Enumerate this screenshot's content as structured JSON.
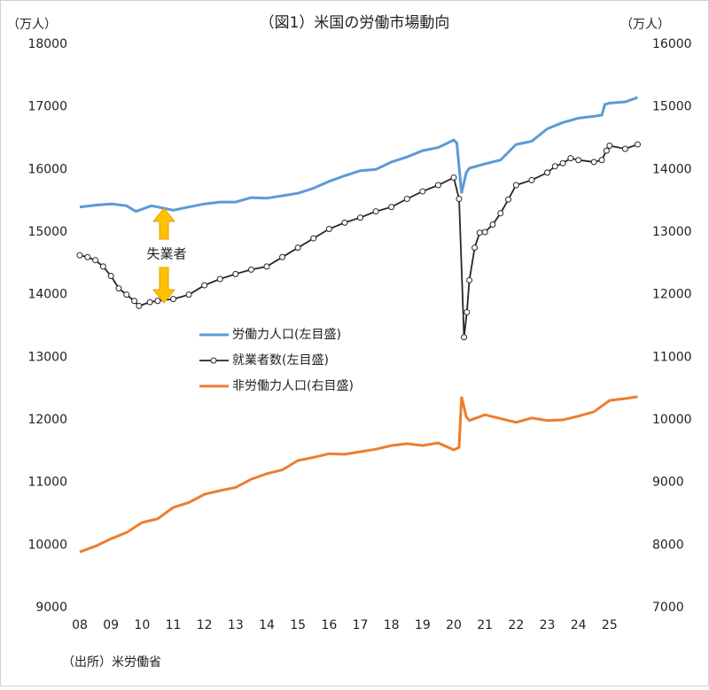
{
  "chart_data": {
    "type": "line",
    "title": "（図1）米国の労働市場動向",
    "y_unit": "（万人）",
    "y2_unit": "（万人）",
    "source": "（出所）米労働省",
    "annotation": "失業者",
    "xlim": [
      2008,
      2026
    ],
    "xticks": [
      {
        "value": 2008,
        "label": "08"
      },
      {
        "value": 2009,
        "label": "09"
      },
      {
        "value": 2010,
        "label": "10"
      },
      {
        "value": 2011,
        "label": "11"
      },
      {
        "value": 2012,
        "label": "12"
      },
      {
        "value": 2013,
        "label": "13"
      },
      {
        "value": 2014,
        "label": "14"
      },
      {
        "value": 2015,
        "label": "15"
      },
      {
        "value": 2016,
        "label": "16"
      },
      {
        "value": 2017,
        "label": "17"
      },
      {
        "value": 2018,
        "label": "18"
      },
      {
        "value": 2019,
        "label": "19"
      },
      {
        "value": 2020,
        "label": "20"
      },
      {
        "value": 2021,
        "label": "21"
      },
      {
        "value": 2022,
        "label": "22"
      },
      {
        "value": 2023,
        "label": "23"
      },
      {
        "value": 2024,
        "label": "24"
      },
      {
        "value": 2025,
        "label": "25"
      }
    ],
    "ylim": [
      9000,
      18000
    ],
    "yticks": [
      9000,
      10000,
      11000,
      12000,
      13000,
      14000,
      15000,
      16000,
      17000,
      18000
    ],
    "y2lim": [
      7000,
      16000
    ],
    "y2ticks": [
      7000,
      8000,
      9000,
      10000,
      11000,
      12000,
      13000,
      14000,
      15000,
      16000
    ],
    "series": [
      {
        "name": "労働力人口(左目盛)",
        "color": "#5b9bd5",
        "marker": false,
        "x": [
          2008,
          2008.5,
          2009,
          2009.5,
          2009.8,
          2010.3,
          2010.7,
          2011,
          2011.5,
          2012,
          2012.5,
          2013,
          2013.5,
          2014,
          2014.5,
          2015,
          2015.5,
          2016,
          2016.5,
          2017,
          2017.5,
          2018,
          2018.5,
          2019,
          2019.5,
          2020,
          2020.1,
          2020.25,
          2020.4,
          2020.5,
          2021,
          2021.5,
          2022,
          2022.5,
          2023,
          2023.5,
          2024,
          2024.5,
          2024.75,
          2024.85,
          2025,
          2025.5,
          2025.9
        ],
        "values": [
          15400,
          15430,
          15450,
          15420,
          15330,
          15420,
          15380,
          15350,
          15400,
          15450,
          15480,
          15480,
          15550,
          15540,
          15580,
          15620,
          15700,
          15810,
          15900,
          15980,
          16000,
          16120,
          16200,
          16300,
          16350,
          16470,
          16420,
          15620,
          15950,
          16020,
          16090,
          16150,
          16400,
          16450,
          16650,
          16750,
          16820,
          16850,
          16870,
          17040,
          17060,
          17080,
          17150
        ]
      },
      {
        "name": "就業者数(左目盛)",
        "color": "#262626",
        "marker": true,
        "x": [
          2008,
          2008.25,
          2008.5,
          2008.75,
          2009,
          2009.25,
          2009.5,
          2009.75,
          2009.9,
          2010.25,
          2010.5,
          2011,
          2011.5,
          2012,
          2012.5,
          2013,
          2013.5,
          2014,
          2014.5,
          2015,
          2015.5,
          2016,
          2016.5,
          2017,
          2017.5,
          2018,
          2018.5,
          2019,
          2019.5,
          2020,
          2020.17,
          2020.33,
          2020.42,
          2020.5,
          2020.67,
          2020.83,
          2021,
          2021.25,
          2021.5,
          2021.75,
          2022,
          2022.5,
          2023,
          2023.25,
          2023.5,
          2023.75,
          2024,
          2024.5,
          2024.75,
          2024.9,
          2025,
          2025.5,
          2025.9
        ],
        "values": [
          14630,
          14600,
          14550,
          14450,
          14300,
          14100,
          14000,
          13900,
          13820,
          13880,
          13900,
          13930,
          14000,
          14150,
          14250,
          14330,
          14400,
          14450,
          14600,
          14750,
          14900,
          15050,
          15150,
          15230,
          15330,
          15400,
          15530,
          15650,
          15750,
          15870,
          15530,
          13320,
          13720,
          14230,
          14750,
          14990,
          15000,
          15120,
          15300,
          15520,
          15750,
          15830,
          15950,
          16050,
          16100,
          16180,
          16150,
          16120,
          16150,
          16300,
          16380,
          16330,
          16400
        ]
      },
      {
        "name": "非労働力人口(右目盛)",
        "color": "#ed7d31",
        "marker": false,
        "axis": "y2",
        "x": [
          2008,
          2008.5,
          2009,
          2009.5,
          2010,
          2010.5,
          2011,
          2011.5,
          2012,
          2012.5,
          2013,
          2013.5,
          2014,
          2014.5,
          2015,
          2015.5,
          2016,
          2016.5,
          2017,
          2017.5,
          2018,
          2018.5,
          2019,
          2019.5,
          2020,
          2020.17,
          2020.25,
          2020.4,
          2020.5,
          2021,
          2021.5,
          2022,
          2022.5,
          2023,
          2023.5,
          2024,
          2024.5,
          2025,
          2025.5,
          2025.9
        ],
        "values": [
          7890,
          7980,
          8100,
          8200,
          8360,
          8420,
          8600,
          8680,
          8810,
          8870,
          8920,
          9050,
          9140,
          9200,
          9350,
          9400,
          9460,
          9450,
          9490,
          9530,
          9590,
          9620,
          9590,
          9630,
          9520,
          9560,
          10370,
          10050,
          9990,
          10080,
          10020,
          9960,
          10030,
          9990,
          10000,
          10060,
          10130,
          10310,
          10340,
          10370
        ]
      }
    ]
  }
}
